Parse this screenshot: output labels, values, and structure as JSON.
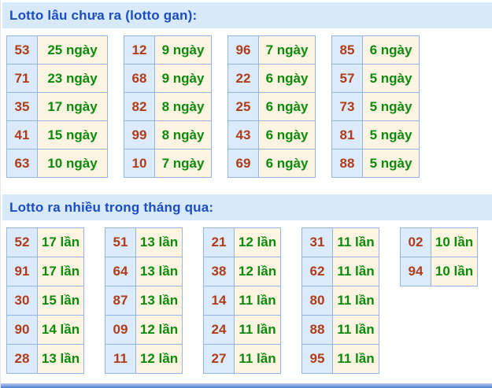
{
  "colors": {
    "section_header_bg": "#d8e9f9",
    "section_title": "#1b4cc4",
    "number_text": "#b03c1a",
    "number_cell_bg": "#dcebfc",
    "value_text": "#0b8a0b",
    "value_cell_bg": "#fdf4e2",
    "table_border": "#94b5e7",
    "bottom_bar": "#4b79ce"
  },
  "sections": [
    {
      "title": "Lotto lâu chưa ra (lotto gan):",
      "unit": "ngày",
      "tables": [
        {
          "rows": [
            {
              "n": "53",
              "t": "25 ngày"
            },
            {
              "n": "71",
              "t": "23 ngày"
            },
            {
              "n": "35",
              "t": "17 ngày"
            },
            {
              "n": "41",
              "t": "15 ngày"
            },
            {
              "n": "63",
              "t": "10 ngày"
            }
          ]
        },
        {
          "rows": [
            {
              "n": "12",
              "t": "9 ngày"
            },
            {
              "n": "68",
              "t": "9 ngày"
            },
            {
              "n": "82",
              "t": "8 ngày"
            },
            {
              "n": "99",
              "t": "8 ngày"
            },
            {
              "n": "10",
              "t": "7 ngày"
            }
          ]
        },
        {
          "rows": [
            {
              "n": "96",
              "t": "7 ngày"
            },
            {
              "n": "22",
              "t": "6 ngày"
            },
            {
              "n": "25",
              "t": "6 ngày"
            },
            {
              "n": "43",
              "t": "6 ngày"
            },
            {
              "n": "69",
              "t": "6 ngày"
            }
          ]
        },
        {
          "rows": [
            {
              "n": "85",
              "t": "6 ngày"
            },
            {
              "n": "57",
              "t": "5 ngày"
            },
            {
              "n": "73",
              "t": "5 ngày"
            },
            {
              "n": "81",
              "t": "5 ngày"
            },
            {
              "n": "88",
              "t": "5 ngày"
            }
          ]
        }
      ]
    },
    {
      "title": "Lotto ra nhiều trong tháng qua:",
      "unit": "lần",
      "tables": [
        {
          "rows": [
            {
              "n": "52",
              "t": "17 lần"
            },
            {
              "n": "91",
              "t": "17 lần"
            },
            {
              "n": "30",
              "t": "15 lần"
            },
            {
              "n": "90",
              "t": "14 lần"
            },
            {
              "n": "28",
              "t": "13 lần"
            }
          ]
        },
        {
          "rows": [
            {
              "n": "51",
              "t": "13 lần"
            },
            {
              "n": "64",
              "t": "13 lần"
            },
            {
              "n": "87",
              "t": "13 lần"
            },
            {
              "n": "09",
              "t": "12 lần"
            },
            {
              "n": "11",
              "t": "12 lần"
            }
          ]
        },
        {
          "rows": [
            {
              "n": "21",
              "t": "12 lần"
            },
            {
              "n": "38",
              "t": "12 lần"
            },
            {
              "n": "14",
              "t": "11 lần"
            },
            {
              "n": "24",
              "t": "11 lần"
            },
            {
              "n": "27",
              "t": "11 lần"
            }
          ]
        },
        {
          "rows": [
            {
              "n": "31",
              "t": "11 lần"
            },
            {
              "n": "62",
              "t": "11 lần"
            },
            {
              "n": "80",
              "t": "11 lần"
            },
            {
              "n": "88",
              "t": "11 lần"
            },
            {
              "n": "95",
              "t": "11 lần"
            }
          ]
        },
        {
          "rows": [
            {
              "n": "02",
              "t": "10 lần"
            },
            {
              "n": "94",
              "t": "10 lần"
            }
          ]
        }
      ]
    }
  ]
}
